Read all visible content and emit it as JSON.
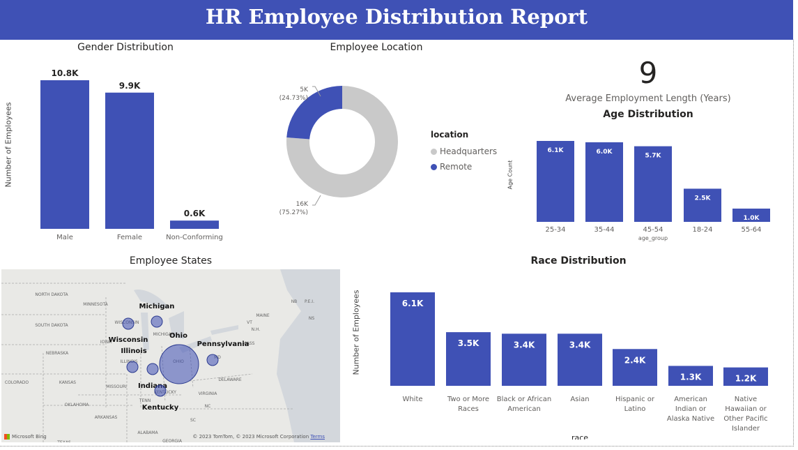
{
  "report": {
    "title": "HR Employee Distribution Report"
  },
  "kpi": {
    "value": "9",
    "label": "Average Employment Length (Years)"
  },
  "colors": {
    "banner": "#3f51b5",
    "bar": "#3f51b5",
    "remote": "#3f51b5",
    "headquarters": "#c9c9c9"
  },
  "gender_chart": {
    "title": "Gender Distribution",
    "ylabel": "Number of Employees"
  },
  "location_chart": {
    "title": "Employee Location",
    "legend_title": "location",
    "slices": [
      {
        "label": "Headquarters",
        "value_label": "16K",
        "pct_label": "(75.27%)"
      },
      {
        "label": "Remote",
        "value_label": "5K",
        "pct_label": "(24.73%)"
      }
    ]
  },
  "age_chart": {
    "title": "Age Distribution",
    "ylabel": "Age Count",
    "xlabel": "age_group"
  },
  "race_chart": {
    "title": "Race Distribution",
    "ylabel": "Number of Employees",
    "xlabel": "race"
  },
  "map": {
    "title": "Employee States",
    "bubble_labels": [
      "Michigan",
      "Wisconsin",
      "Illinois",
      "Ohio",
      "Pennsylvania",
      "Indiana",
      "Kentucky"
    ],
    "base_labels": [
      "NORTH DAKOTA",
      "SOUTH DAKOTA",
      "NEBRASKA",
      "KANSAS",
      "COLORADO",
      "OKLAHOMA",
      "TEXAS",
      "MINNESOTA",
      "IOWA",
      "MISSOURI",
      "ARKANSAS",
      "ALABAMA",
      "GEORGIA",
      "SC",
      "NC",
      "VIRGINIA",
      "DELAWARE",
      "MAINE",
      "VT",
      "NH",
      "NS",
      "NB",
      "P.E.I.",
      "MASS",
      "TENN",
      "MICHIGAN",
      "WISCONSIN",
      "OHIO",
      "ILLINOIS",
      "KENTUCKY",
      "MD"
    ],
    "copyright": "© 2023 TomTom, © 2023 Microsoft Corporation",
    "terms": "Terms",
    "bing": "Microsoft Bing"
  },
  "chart_data": [
    {
      "type": "bar",
      "title": "Gender Distribution",
      "ylabel": "Number of Employees",
      "xlabel": "",
      "categories": [
        "Male",
        "Female",
        "Non-Conforming"
      ],
      "values": [
        10.8,
        9.9,
        0.6
      ],
      "value_labels": [
        "10.8K",
        "9.9K",
        "0.6K"
      ]
    },
    {
      "type": "pie",
      "title": "Employee Location",
      "categories": [
        "Headquarters",
        "Remote"
      ],
      "values": [
        16,
        5
      ],
      "percents": [
        75.27,
        24.73
      ]
    },
    {
      "type": "bar",
      "title": "Age Distribution",
      "ylabel": "Age Count",
      "xlabel": "age_group",
      "categories": [
        "25-34",
        "35-44",
        "45-54",
        "18-24",
        "55-64"
      ],
      "values": [
        6.1,
        6.0,
        5.7,
        2.5,
        1.0
      ],
      "value_labels": [
        "6.1K",
        "6.0K",
        "5.7K",
        "2.5K",
        "1.0K"
      ]
    },
    {
      "type": "bar",
      "title": "Race Distribution",
      "ylabel": "Number of Employees",
      "xlabel": "race",
      "categories": [
        "White",
        "Two or More Races",
        "Black or African American",
        "Asian",
        "Hispanic or Latino",
        "American Indian or Alaska Native",
        "Native Hawaiian or Other Pacific Islander"
      ],
      "values": [
        6.1,
        3.5,
        3.4,
        3.4,
        2.4,
        1.3,
        1.2
      ],
      "value_labels": [
        "6.1K",
        "3.5K",
        "3.4K",
        "3.4K",
        "2.4K",
        "1.3K",
        "1.2K"
      ]
    }
  ]
}
